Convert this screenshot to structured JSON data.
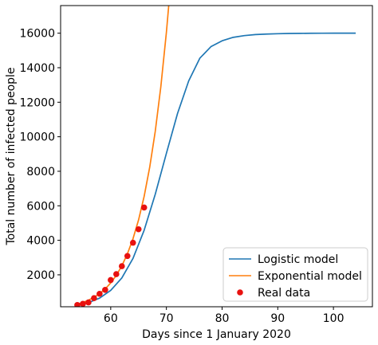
{
  "chart_data": {
    "type": "line",
    "xlabel": "Days since 1 January 2020",
    "ylabel": "Total number of infected people",
    "xlim": [
      51,
      107
    ],
    "ylim": [
      150,
      17600
    ],
    "xticks": [
      60,
      70,
      80,
      90,
      100
    ],
    "yticks": [
      2000,
      4000,
      6000,
      8000,
      10000,
      12000,
      14000,
      16000
    ],
    "grid": false,
    "legend_position": "lower right",
    "series": [
      {
        "name": "Logistic model",
        "kind": "line",
        "color": "#1f77b4",
        "x": [
          54,
          56,
          58,
          60,
          62,
          64,
          66,
          68,
          70,
          72,
          74,
          76,
          78,
          80,
          82,
          84,
          86,
          88,
          90,
          92,
          94,
          96,
          98,
          100,
          102,
          104
        ],
        "y": [
          230,
          390,
          650,
          1100,
          1820,
          2950,
          4580,
          6670,
          9040,
          11350,
          13230,
          14550,
          15220,
          15560,
          15760,
          15860,
          15920,
          15950,
          15970,
          15985,
          15990,
          15995,
          15998,
          16000,
          16000,
          16000
        ]
      },
      {
        "name": "Exponential model",
        "kind": "line",
        "color": "#ff7f0e",
        "x": [
          54,
          55,
          56,
          57,
          58,
          59,
          60,
          61,
          62,
          63,
          64,
          65,
          66,
          67,
          68,
          69,
          70,
          70.5
        ],
        "y": [
          300,
          400,
          530,
          700,
          910,
          1180,
          1530,
          1970,
          2520,
          3220,
          4090,
          5180,
          6540,
          8230,
          10320,
          12900,
          16050,
          17900
        ]
      },
      {
        "name": "Real data",
        "kind": "scatter",
        "color": "#e8110f",
        "x": [
          54,
          55,
          56,
          57,
          58,
          59,
          60,
          61,
          62,
          63,
          64,
          65,
          66
        ],
        "y": [
          250,
          320,
          400,
          650,
          900,
          1130,
          1700,
          2040,
          2500,
          3090,
          3860,
          4640,
          5900
        ]
      }
    ]
  }
}
